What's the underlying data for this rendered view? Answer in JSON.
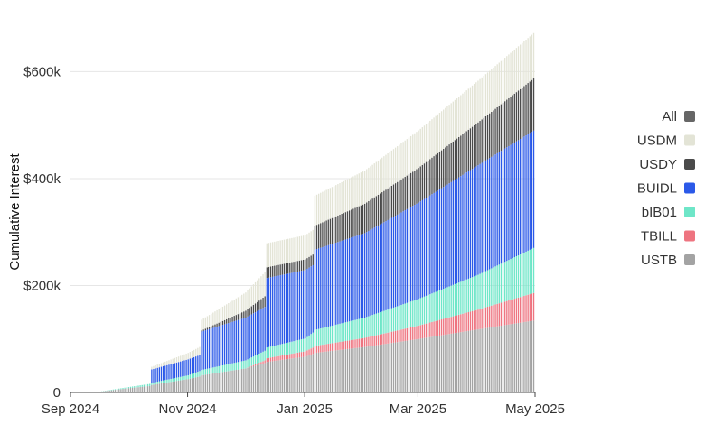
{
  "chart_data": {
    "type": "bar",
    "stacked": true,
    "title": "",
    "ylabel": "Cumulative Interest",
    "xlabel": "",
    "xlim": [
      "2024-09-01",
      "2025-05-01"
    ],
    "ylim": [
      0,
      680000
    ],
    "y_ticks": [
      0,
      200000,
      400000,
      600000
    ],
    "y_tick_labels": [
      "0",
      "$200k",
      "$400k",
      "$600k"
    ],
    "x_ticks": [
      "2024-09-01",
      "2024-11-01",
      "2025-01-01",
      "2025-03-01",
      "2025-05-01"
    ],
    "x_tick_labels": [
      "Sep 2024",
      "Nov 2024",
      "Jan 2025",
      "Mar 2025",
      "May 2025"
    ],
    "grid": "horizontal",
    "legend_position": "right",
    "legend": [
      {
        "name": "All",
        "color": "#666666"
      },
      {
        "name": "USDM",
        "color": "#e3e4d6"
      },
      {
        "name": "USDY",
        "color": "#4a4a4a"
      },
      {
        "name": "BUIDL",
        "color": "#2b59e8"
      },
      {
        "name": "bIB01",
        "color": "#6ee6c8"
      },
      {
        "name": "TBILL",
        "color": "#ee7480"
      },
      {
        "name": "USTB",
        "color": "#a3a3a3"
      }
    ],
    "dates": [
      "2024-09-01",
      "2024-09-15",
      "2024-10-01",
      "2024-10-12",
      "2024-10-13",
      "2024-11-01",
      "2024-11-07",
      "2024-11-08",
      "2024-12-01",
      "2024-12-11",
      "2024-12-12",
      "2025-01-01",
      "2025-01-05",
      "2025-01-06",
      "2025-02-01",
      "2025-03-01",
      "2025-04-01",
      "2025-05-01"
    ],
    "series": [
      {
        "name": "USTB",
        "color": "#a3a3a3",
        "values": [
          0,
          1000,
          8000,
          12000,
          14000,
          25000,
          30000,
          32000,
          45000,
          55000,
          57000,
          67000,
          72000,
          74000,
          85000,
          100000,
          118000,
          135000
        ]
      },
      {
        "name": "TBILL",
        "color": "#ee7480",
        "values": [
          0,
          0,
          0,
          0,
          0,
          0,
          0,
          0,
          0,
          5000,
          7000,
          10000,
          12000,
          13000,
          17000,
          25000,
          37000,
          52000
        ]
      },
      {
        "name": "bIB01",
        "color": "#6ee6c8",
        "values": [
          0,
          0,
          2000,
          4000,
          4000,
          7000,
          10000,
          10000,
          15000,
          18000,
          20000,
          24000,
          28000,
          30000,
          38000,
          50000,
          65000,
          85000
        ]
      },
      {
        "name": "BUIDL",
        "color": "#2b59e8",
        "values": [
          0,
          0,
          0,
          0,
          25000,
          30000,
          30000,
          72000,
          80000,
          82000,
          130000,
          128000,
          126000,
          150000,
          158000,
          180000,
          205000,
          220000
        ]
      },
      {
        "name": "USDY",
        "color": "#4a4a4a",
        "values": [
          0,
          0,
          0,
          0,
          0,
          0,
          0,
          2000,
          13000,
          20000,
          20000,
          20000,
          20000,
          45000,
          55000,
          65000,
          80000,
          98000
        ]
      },
      {
        "name": "USDM",
        "color": "#e3e4d6",
        "values": [
          0,
          0,
          0,
          0,
          5000,
          12000,
          15000,
          20000,
          34000,
          45000,
          45000,
          45000,
          46000,
          56000,
          62000,
          70000,
          78000,
          85000
        ]
      }
    ]
  }
}
